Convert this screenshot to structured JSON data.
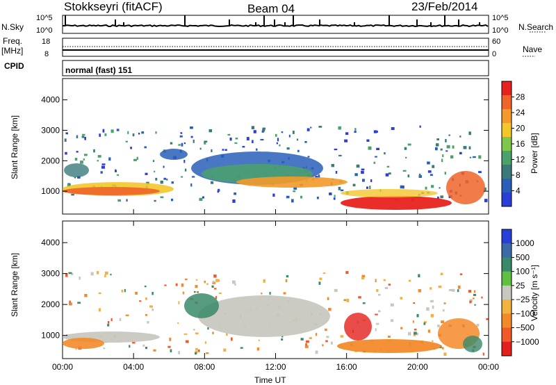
{
  "header": {
    "station": "Stokkseyri (fitACF)",
    "beam": "Beam 04",
    "date": "23/Feb/2014"
  },
  "panels": {
    "nsky": {
      "left_label": "N.Sky",
      "right_label": "N.Search",
      "left_ticks": [
        "10^5",
        "10^0"
      ],
      "right_ticks": [
        "10^5",
        "10^0"
      ]
    },
    "freq": {
      "left_label_1": "Freq.",
      "left_label_2": "[MHz]",
      "right_label": "Nave",
      "left_ticks": [
        "18",
        "8"
      ],
      "right_ticks": [
        "60",
        "0"
      ]
    },
    "cpid": {
      "label": "CPID",
      "value": "normal (fast) 151"
    }
  },
  "chart_data": [
    {
      "type": "heatmap",
      "name": "power",
      "ylabel": "Slant Range [km]",
      "xlabel": "",
      "ylim": [
        250,
        4700
      ],
      "y_ticks": [
        "1000",
        "2000",
        "3000",
        "4000"
      ],
      "colorbar_label": "Power [dB]",
      "colorbar_ticks": [
        "4",
        "8",
        "12",
        "16",
        "20",
        "24",
        "28"
      ],
      "colors": [
        "#2a3fd8",
        "#2a5fb8",
        "#3a7a7a",
        "#4aa16a",
        "#7dc84a",
        "#f3c62a",
        "#f39a2a",
        "#f0642a",
        "#e8221e"
      ]
    },
    {
      "type": "heatmap",
      "name": "velocity",
      "ylabel": "Slant Range [km]",
      "xlabel": "Time UT",
      "ylim": [
        250,
        4700
      ],
      "y_ticks": [
        "1000",
        "2000",
        "3000",
        "4000"
      ],
      "x_ticks": [
        "00:00",
        "04:00",
        "08:00",
        "12:00",
        "16:00",
        "20:00",
        "00:00"
      ],
      "colorbar_label": "Velocity [m s⁻¹]",
      "colorbar_ticks": [
        "1000",
        "500",
        "100",
        "25",
        "−25",
        "−100",
        "−500",
        "−1000"
      ],
      "colors": [
        "#2a3fd8",
        "#3a6aa8",
        "#3a8a6a",
        "#5fc040",
        "#c8c8c0",
        "#f3b240",
        "#f38a2a",
        "#f05a28",
        "#e4201c"
      ]
    }
  ]
}
